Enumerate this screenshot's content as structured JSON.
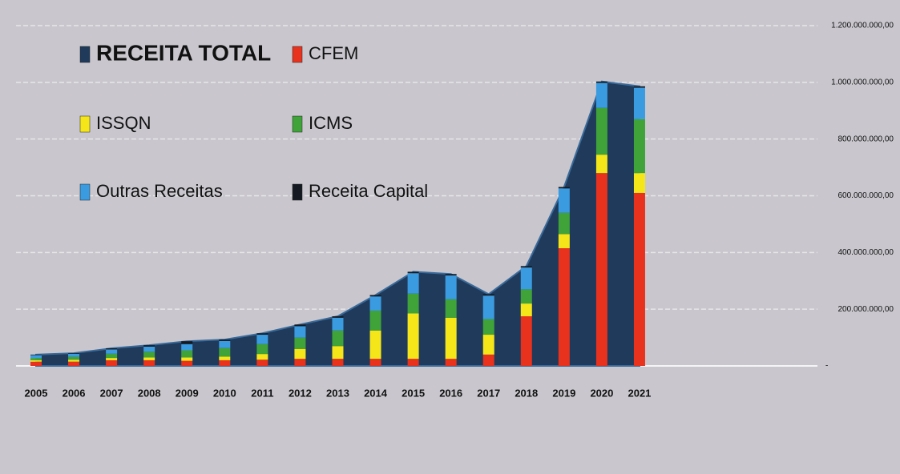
{
  "chart_data": {
    "type": "bar",
    "categories": [
      "2005",
      "2006",
      "2007",
      "2008",
      "2009",
      "2010",
      "2011",
      "2012",
      "2013",
      "2014",
      "2015",
      "2016",
      "2017",
      "2018",
      "2019",
      "2020",
      "2021"
    ],
    "series": [
      {
        "name": "RECEITA TOTAL",
        "kind": "area",
        "color": "#1f3a5a",
        "values": [
          40,
          45,
          62,
          73,
          87,
          93,
          115,
          146,
          175,
          250,
          332,
          324,
          253,
          352,
          631,
          1003,
          986
        ]
      },
      {
        "name": "CFEM",
        "kind": "bar",
        "color": "#e8321e",
        "values": [
          15,
          15,
          20,
          20,
          18,
          20,
          22,
          25,
          25,
          25,
          25,
          25,
          40,
          175,
          415,
          680,
          610
        ]
      },
      {
        "name": "ISSQN",
        "kind": "bar",
        "color": "#f5e61a",
        "values": [
          5,
          7,
          8,
          10,
          12,
          13,
          20,
          35,
          45,
          100,
          160,
          145,
          70,
          45,
          50,
          65,
          70
        ]
      },
      {
        "name": "ICMS",
        "kind": "bar",
        "color": "#3fa33a",
        "values": [
          8,
          10,
          15,
          20,
          25,
          30,
          35,
          40,
          55,
          70,
          70,
          65,
          55,
          50,
          75,
          165,
          190
        ]
      },
      {
        "name": "Outras Receitas",
        "kind": "bar",
        "color": "#3b9be0",
        "values": [
          10,
          11,
          15,
          18,
          22,
          25,
          33,
          40,
          45,
          50,
          72,
          84,
          83,
          77,
          86,
          88,
          111
        ]
      },
      {
        "name": "Receita Capital",
        "kind": "bar",
        "color": "#151a22",
        "values": [
          2,
          2,
          4,
          5,
          10,
          5,
          5,
          6,
          5,
          5,
          5,
          5,
          5,
          5,
          5,
          5,
          5
        ]
      }
    ],
    "ylim": [
      0,
      1200000000
    ],
    "yticks": [
      {
        "value": 0,
        "label": "-"
      },
      {
        "value": 200000000,
        "label": "200.000.000,00"
      },
      {
        "value": 400000000,
        "label": "400.000.000,00"
      },
      {
        "value": 600000000,
        "label": "600.000.000,00"
      },
      {
        "value": 800000000,
        "label": "800.000.000,00"
      },
      {
        "value": 1000000000,
        "label": "1.000.000.000,00"
      },
      {
        "value": 1200000000,
        "label": "1.200.000.000,00"
      }
    ],
    "value_unit": 1000000,
    "grid": true
  }
}
